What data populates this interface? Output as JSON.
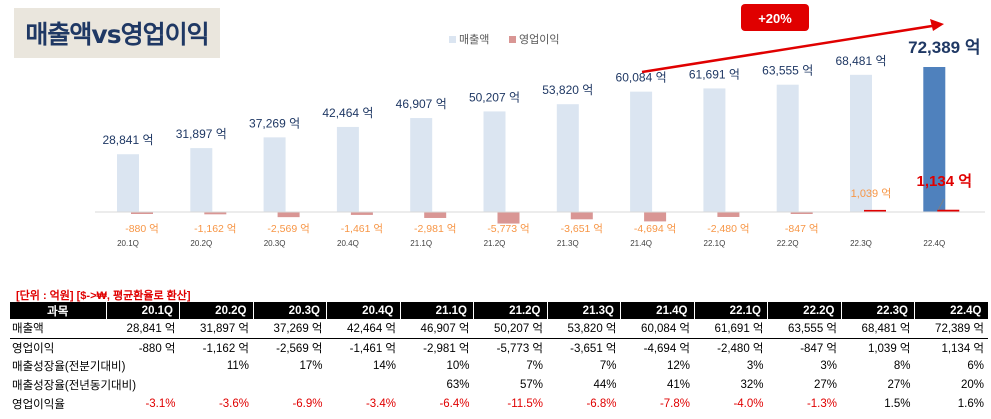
{
  "title": "매출액vs영업이익",
  "legend": {
    "revenue": "매출액",
    "profit": "영업이익"
  },
  "growth_badge": "+20%",
  "colors": {
    "revenue": "#dbe5f1",
    "revenue_highlight": "#4f81bd",
    "profit": "#d99694",
    "profit_highlight": "#e00000",
    "profit_label": "#f79646",
    "revenue_label": "#1f3864"
  },
  "chart_data": {
    "type": "bar",
    "title": "매출액vs영업이익",
    "categories": [
      "20.1Q",
      "20.2Q",
      "20.3Q",
      "20.4Q",
      "21.1Q",
      "21.2Q",
      "21.3Q",
      "21.4Q",
      "22.1Q",
      "22.2Q",
      "22.3Q",
      "22.4Q"
    ],
    "series": [
      {
        "name": "매출액",
        "values": [
          28841,
          31897,
          37269,
          42464,
          46907,
          50207,
          53820,
          60084,
          61691,
          63555,
          68481,
          72389
        ],
        "labels": [
          "28,841 억",
          "31,897 억",
          "37,269 억",
          "42,464 억",
          "46,907 억",
          "50,207 억",
          "53,820 억",
          "60,084 억",
          "61,691 억",
          "63,555 억",
          "68,481 억",
          "72,389 억"
        ]
      },
      {
        "name": "영업이익",
        "values": [
          -880,
          -1162,
          -2569,
          -1461,
          -2981,
          -5773,
          -3651,
          -4694,
          -2480,
          -847,
          1039,
          1134
        ],
        "labels": [
          "-880 억",
          "-1,162 억",
          "-2,569 억",
          "-1,461 억",
          "-2,981 억",
          "-5,773 억",
          "-3,651 억",
          "-4,694 억",
          "-2,480 억",
          "-847 억",
          "1,039 억",
          "1,134 억"
        ]
      }
    ]
  },
  "table": {
    "unit_note": "[단위 : 억원]  [$->₩, 평균환율로 환산]",
    "headers": [
      "과목",
      "20.1Q",
      "20.2Q",
      "20.3Q",
      "20.4Q",
      "21.1Q",
      "21.2Q",
      "21.3Q",
      "21.4Q",
      "22.1Q",
      "22.2Q",
      "22.3Q",
      "22.4Q"
    ],
    "rows": [
      {
        "label": "매출액",
        "cells": [
          "28,841 억",
          "31,897 억",
          "37,269 억",
          "42,464 억",
          "46,907 억",
          "50,207 억",
          "53,820 억",
          "60,084 억",
          "61,691 억",
          "63,555 억",
          "68,481 억",
          "72,389 억"
        ]
      },
      {
        "label": "영업이익",
        "cells": [
          "-880 억",
          "-1,162 억",
          "-2,569 억",
          "-1,461 억",
          "-2,981 억",
          "-5,773 억",
          "-3,651 억",
          "-4,694 억",
          "-2,480 억",
          "-847 억",
          "1,039 억",
          "1,134 억"
        ]
      },
      {
        "label": "매출성장율(전분기대비)",
        "cells": [
          "",
          "11%",
          "17%",
          "14%",
          "10%",
          "7%",
          "7%",
          "12%",
          "3%",
          "3%",
          "8%",
          "6%"
        ]
      },
      {
        "label": "매출성장율(전년동기대비)",
        "cells": [
          "",
          "",
          "",
          "",
          "63%",
          "57%",
          "44%",
          "41%",
          "32%",
          "27%",
          "27%",
          "20%"
        ]
      },
      {
        "label": "영업이익율",
        "cells": [
          "-3.1%",
          "-3.6%",
          "-6.9%",
          "-3.4%",
          "-6.4%",
          "-11.5%",
          "-6.8%",
          "-7.8%",
          "-4.0%",
          "-1.3%",
          "1.5%",
          "1.6%"
        ]
      }
    ]
  }
}
